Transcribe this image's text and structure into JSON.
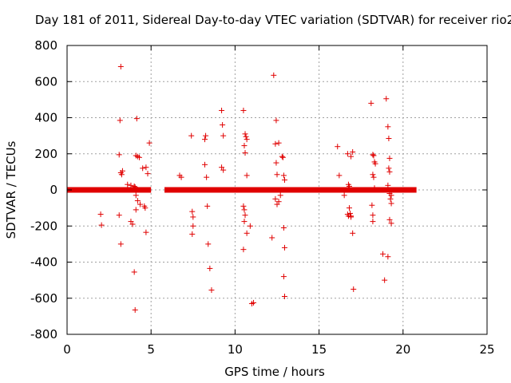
{
  "chart_data": {
    "type": "scatter",
    "title": "Day 181 of 2011, Sidereal Day-to-day VTEC variation (SDTVAR) for receiver rio2",
    "xlabel": "GPS time / hours",
    "ylabel": "SDTVAR / TECUs",
    "xlim": [
      0,
      25
    ],
    "ylim": [
      -800,
      800
    ],
    "xticks": [
      0,
      5,
      10,
      15,
      20,
      25
    ],
    "yticks": [
      -800,
      -600,
      -400,
      -200,
      0,
      200,
      400,
      600,
      800
    ],
    "x_tick_labels": [
      "0",
      "5",
      "10",
      "15",
      "20",
      "25"
    ],
    "y_tick_labels": [
      "-800",
      "-600",
      "-400",
      "-200",
      "0",
      "200",
      "400",
      "600",
      "800"
    ],
    "grid": true,
    "marker": "+",
    "color": "#e00000",
    "dense_bands": [
      {
        "x_start": 0.0,
        "x_end": 5.0,
        "y": 0
      },
      {
        "x_start": 5.8,
        "x_end": 20.8,
        "y": 0
      }
    ],
    "series": [
      {
        "name": "SDTVAR",
        "x": [
          3.2,
          3.15,
          4.15,
          3.1,
          2.0,
          2.05,
          3.3,
          3.2,
          3.25,
          3.6,
          3.8,
          4.0,
          4.05,
          4.1,
          4.2,
          4.3,
          4.5,
          4.7,
          4.8,
          4.9,
          4.1,
          4.2,
          4.35,
          4.6,
          4.65,
          4.7,
          3.1,
          3.2,
          3.8,
          3.9,
          4.0,
          4.05,
          4.1,
          6.7,
          6.8,
          7.4,
          7.45,
          7.5,
          7.5,
          7.45,
          8.2,
          8.3,
          8.35,
          8.4,
          8.5,
          8.6,
          8.2,
          8.25,
          9.2,
          9.25,
          9.3,
          9.2,
          9.3,
          10.5,
          10.6,
          10.65,
          10.7,
          10.55,
          10.6,
          10.7,
          10.5,
          10.55,
          10.6,
          10.7,
          10.9,
          11.1,
          11.0,
          10.5,
          10.55,
          12.3,
          12.45,
          12.6,
          12.4,
          12.45,
          12.5,
          12.8,
          12.85,
          12.9,
          12.95,
          12.4,
          12.5,
          12.6,
          12.7,
          12.9,
          12.95,
          12.9,
          12.95,
          12.2,
          16.1,
          16.2,
          16.5,
          16.7,
          16.9,
          17.0,
          16.75,
          16.8,
          16.85,
          16.9,
          16.7,
          16.75,
          17.0,
          17.05,
          16.8,
          16.9,
          18.1,
          18.2,
          18.25,
          18.3,
          18.35,
          18.2,
          18.25,
          18.3,
          18.15,
          18.2,
          18.2,
          18.9,
          19.0,
          19.1,
          19.15,
          19.2,
          19.15,
          19.2,
          19.1,
          19.2,
          19.3,
          19.25,
          19.3,
          19.2,
          19.3,
          18.8,
          19.1
        ],
        "y": [
          683,
          385,
          395,
          195,
          -135,
          -195,
          105,
          95,
          85,
          30,
          25,
          20,
          15,
          190,
          185,
          180,
          120,
          125,
          90,
          260,
          -30,
          -60,
          -80,
          -90,
          -100,
          -235,
          -140,
          -300,
          -175,
          -190,
          -455,
          -665,
          -110,
          80,
          70,
          300,
          -120,
          -150,
          -200,
          -245,
          140,
          70,
          -90,
          -300,
          -435,
          -555,
          280,
          300,
          440,
          360,
          300,
          125,
          110,
          440,
          310,
          295,
          280,
          245,
          205,
          80,
          -90,
          -110,
          -140,
          -240,
          -200,
          -625,
          -630,
          -330,
          -175,
          635,
          385,
          260,
          255,
          150,
          85,
          185,
          180,
          80,
          55,
          -50,
          -80,
          -65,
          -30,
          -210,
          -320,
          -480,
          -590,
          -265,
          240,
          80,
          -30,
          200,
          185,
          210,
          30,
          20,
          -130,
          -150,
          -135,
          -145,
          -240,
          -550,
          -100,
          -145,
          480,
          195,
          190,
          155,
          145,
          85,
          70,
          10,
          -85,
          -140,
          -175,
          -500,
          505,
          350,
          285,
          175,
          120,
          100,
          25,
          -20,
          -30,
          -50,
          -75,
          -165,
          -185,
          -355,
          -370
        ]
      }
    ]
  }
}
